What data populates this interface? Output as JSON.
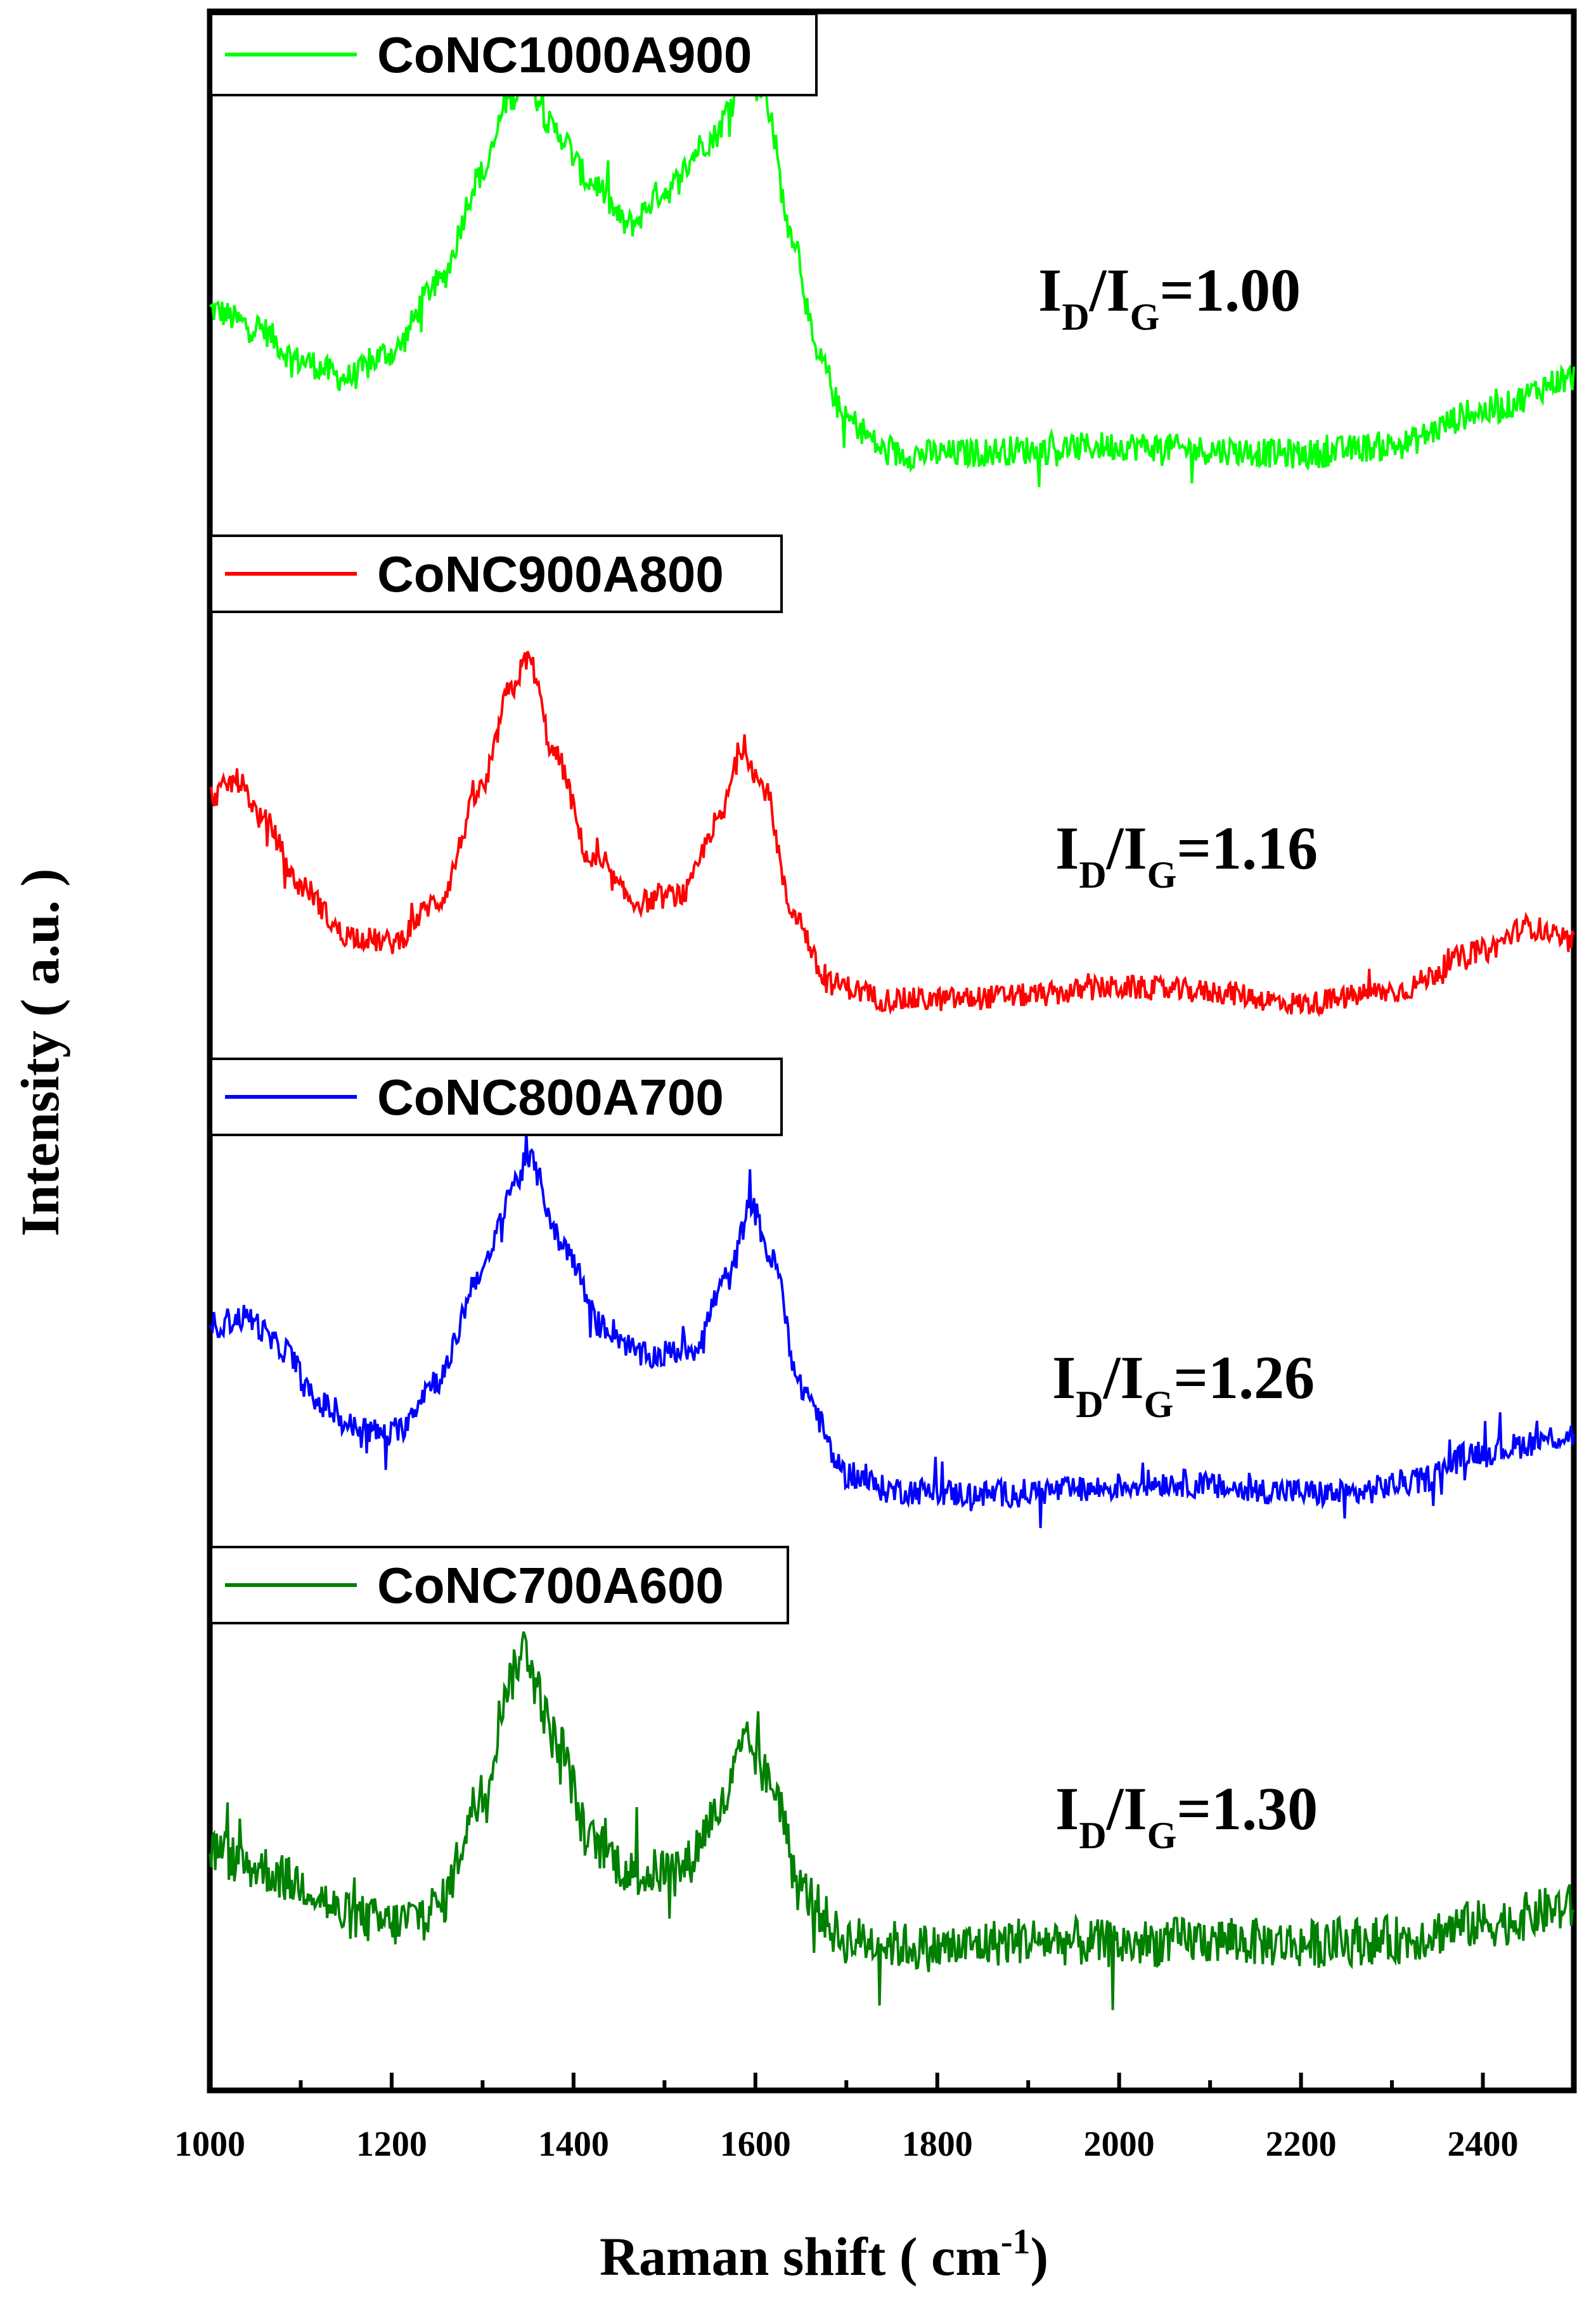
{
  "chart_data": {
    "type": "line",
    "title": "",
    "xlabel": "Raman shift ( cm",
    "xlabel_sup": "-1",
    "xlabel_close": ")",
    "ylabel": "Intensity ( a.u. )",
    "xlim": [
      1000,
      2500
    ],
    "x_ticks": [
      1000,
      1200,
      1400,
      1600,
      1800,
      2000,
      2200,
      2400
    ],
    "grid": false,
    "y_ticks_shown": false,
    "series": [
      {
        "name": "CoNC1000A900",
        "color": "#00ff00",
        "ratio": {
          "prefix": "I",
          "sub1": "D",
          "mid": "/I",
          "sub2": "G",
          "value": "=1.00"
        },
        "profile": [
          [
            1000,
            0.42
          ],
          [
            1050,
            0.38
          ],
          [
            1100,
            0.3
          ],
          [
            1150,
            0.26
          ],
          [
            1200,
            0.32
          ],
          [
            1250,
            0.48
          ],
          [
            1300,
            0.74
          ],
          [
            1330,
            0.92
          ],
          [
            1350,
            0.96
          ],
          [
            1380,
            0.84
          ],
          [
            1420,
            0.72
          ],
          [
            1460,
            0.62
          ],
          [
            1500,
            0.7
          ],
          [
            1550,
            0.82
          ],
          [
            1590,
            0.98
          ],
          [
            1610,
            0.92
          ],
          [
            1640,
            0.6
          ],
          [
            1670,
            0.3
          ],
          [
            1700,
            0.16
          ],
          [
            1750,
            0.08
          ],
          [
            1800,
            0.08
          ],
          [
            1900,
            0.09
          ],
          [
            2000,
            0.1
          ],
          [
            2100,
            0.09
          ],
          [
            2200,
            0.08
          ],
          [
            2300,
            0.1
          ],
          [
            2400,
            0.18
          ],
          [
            2500,
            0.26
          ]
        ],
        "noise": 0.035
      },
      {
        "name": "CoNC900A800",
        "color": "#ff0000",
        "ratio": {
          "prefix": "I",
          "sub1": "D",
          "mid": "/I",
          "sub2": "G",
          "value": "=1.16"
        },
        "profile": [
          [
            1000,
            0.56
          ],
          [
            1030,
            0.6
          ],
          [
            1060,
            0.5
          ],
          [
            1100,
            0.34
          ],
          [
            1150,
            0.22
          ],
          [
            1200,
            0.2
          ],
          [
            1250,
            0.3
          ],
          [
            1300,
            0.58
          ],
          [
            1330,
            0.82
          ],
          [
            1350,
            0.9
          ],
          [
            1380,
            0.66
          ],
          [
            1420,
            0.4
          ],
          [
            1470,
            0.3
          ],
          [
            1520,
            0.32
          ],
          [
            1560,
            0.5
          ],
          [
            1585,
            0.68
          ],
          [
            1610,
            0.58
          ],
          [
            1640,
            0.28
          ],
          [
            1680,
            0.1
          ],
          [
            1750,
            0.06
          ],
          [
            1800,
            0.06
          ],
          [
            1900,
            0.07
          ],
          [
            2000,
            0.09
          ],
          [
            2100,
            0.08
          ],
          [
            2200,
            0.05
          ],
          [
            2300,
            0.08
          ],
          [
            2400,
            0.18
          ],
          [
            2450,
            0.24
          ],
          [
            2500,
            0.2
          ]
        ],
        "noise": 0.03
      },
      {
        "name": "CoNC800A700",
        "color": "#0000ff",
        "ratio": {
          "prefix": "I",
          "sub1": "D",
          "mid": "/I",
          "sub2": "G",
          "value": "=1.26"
        },
        "profile": [
          [
            1000,
            0.5
          ],
          [
            1040,
            0.52
          ],
          [
            1080,
            0.44
          ],
          [
            1120,
            0.3
          ],
          [
            1160,
            0.24
          ],
          [
            1200,
            0.22
          ],
          [
            1250,
            0.36
          ],
          [
            1300,
            0.64
          ],
          [
            1335,
            0.86
          ],
          [
            1350,
            0.92
          ],
          [
            1390,
            0.7
          ],
          [
            1430,
            0.5
          ],
          [
            1480,
            0.42
          ],
          [
            1530,
            0.44
          ],
          [
            1570,
            0.62
          ],
          [
            1595,
            0.8
          ],
          [
            1620,
            0.66
          ],
          [
            1650,
            0.34
          ],
          [
            1700,
            0.12
          ],
          [
            1750,
            0.08
          ],
          [
            1850,
            0.07
          ],
          [
            1950,
            0.08
          ],
          [
            2050,
            0.1
          ],
          [
            2150,
            0.08
          ],
          [
            2250,
            0.07
          ],
          [
            2320,
            0.1
          ],
          [
            2400,
            0.18
          ],
          [
            2500,
            0.22
          ]
        ],
        "noise": 0.035
      },
      {
        "name": "CoNC700A600",
        "color": "#008000",
        "ratio": {
          "prefix": "I",
          "sub1": "D",
          "mid": "/I",
          "sub2": "G",
          "value": "=1.30"
        },
        "profile": [
          [
            1000,
            0.4
          ],
          [
            1050,
            0.36
          ],
          [
            1100,
            0.32
          ],
          [
            1150,
            0.24
          ],
          [
            1200,
            0.22
          ],
          [
            1250,
            0.26
          ],
          [
            1300,
            0.54
          ],
          [
            1330,
            0.82
          ],
          [
            1345,
            0.9
          ],
          [
            1380,
            0.68
          ],
          [
            1420,
            0.42
          ],
          [
            1470,
            0.34
          ],
          [
            1520,
            0.36
          ],
          [
            1560,
            0.5
          ],
          [
            1590,
            0.66
          ],
          [
            1620,
            0.56
          ],
          [
            1650,
            0.3
          ],
          [
            1700,
            0.18
          ],
          [
            1800,
            0.16
          ],
          [
            1900,
            0.18
          ],
          [
            2000,
            0.17
          ],
          [
            2100,
            0.18
          ],
          [
            2200,
            0.17
          ],
          [
            2300,
            0.18
          ],
          [
            2400,
            0.22
          ],
          [
            2500,
            0.26
          ]
        ],
        "noise": 0.06
      }
    ]
  }
}
